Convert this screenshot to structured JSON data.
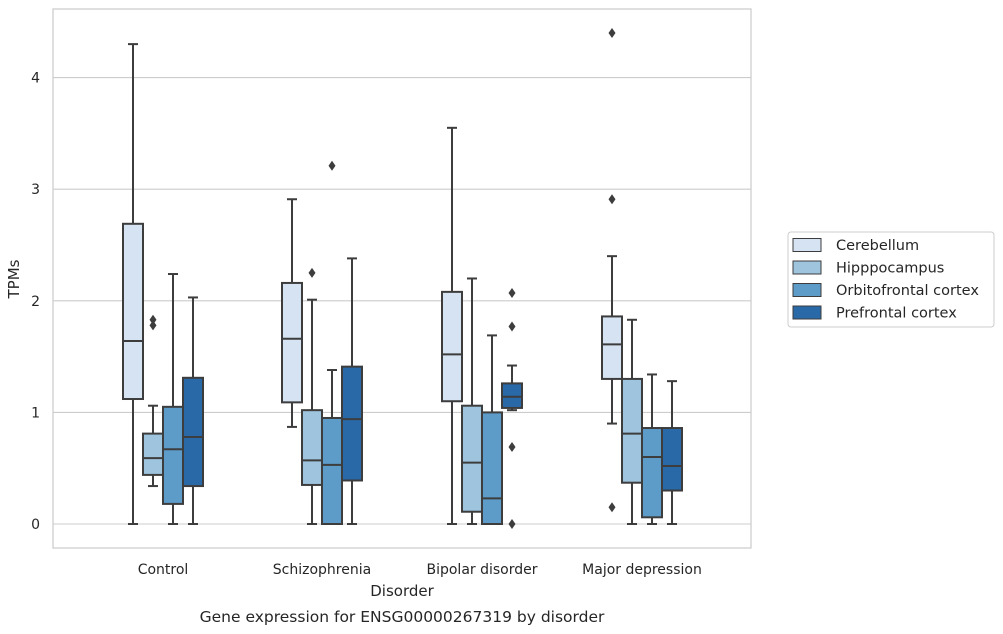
{
  "chart_data": {
    "type": "boxplot",
    "caption": "Gene expression for ENSG00000267319 by disorder",
    "xlabel": "Disorder",
    "ylabel": "TPMs",
    "ylim": [
      -0.2,
      4.6
    ],
    "yticks": [
      0,
      1,
      2,
      3,
      4
    ],
    "grid": "horizontal",
    "legend_position": "right",
    "categories": [
      "Control",
      "Schizophrenia",
      "Bipolar disorder",
      "Major depression"
    ],
    "series": [
      {
        "name": "Cerebellum",
        "color": "#d5e3f2",
        "boxes": [
          {
            "whislo": 0.0,
            "q1": 1.12,
            "med": 1.64,
            "q3": 2.69,
            "whishi": 4.3,
            "fliers": []
          },
          {
            "whislo": 0.87,
            "q1": 1.09,
            "med": 1.66,
            "q3": 2.16,
            "whishi": 2.91,
            "fliers": []
          },
          {
            "whislo": 0.0,
            "q1": 1.1,
            "med": 1.52,
            "q3": 2.08,
            "whishi": 3.55,
            "fliers": []
          },
          {
            "whislo": 0.9,
            "q1": 1.3,
            "med": 1.61,
            "q3": 1.86,
            "whishi": 2.4,
            "fliers": [
              0.15,
              2.91,
              4.4
            ]
          }
        ]
      },
      {
        "name": "Hipppocampus",
        "color": "#9fc4de",
        "boxes": [
          {
            "whislo": 0.34,
            "q1": 0.44,
            "med": 0.59,
            "q3": 0.81,
            "whishi": 1.06,
            "fliers": [
              1.78,
              1.83
            ]
          },
          {
            "whislo": 0.0,
            "q1": 0.35,
            "med": 0.57,
            "q3": 1.02,
            "whishi": 2.01,
            "fliers": [
              2.25
            ]
          },
          {
            "whislo": 0.0,
            "q1": 0.11,
            "med": 0.55,
            "q3": 1.06,
            "whishi": 2.2,
            "fliers": []
          },
          {
            "whislo": 0.0,
            "q1": 0.37,
            "med": 0.81,
            "q3": 1.3,
            "whishi": 1.83,
            "fliers": []
          }
        ]
      },
      {
        "name": "Orbitofrontal cortex",
        "color": "#5d9bc9",
        "boxes": [
          {
            "whislo": 0.0,
            "q1": 0.18,
            "med": 0.67,
            "q3": 1.05,
            "whishi": 2.24,
            "fliers": []
          },
          {
            "whislo": 0.0,
            "q1": 0.0,
            "med": 0.53,
            "q3": 0.95,
            "whishi": 1.38,
            "fliers": [
              3.21
            ]
          },
          {
            "whislo": 0.0,
            "q1": 0.0,
            "med": 0.23,
            "q3": 1.0,
            "whishi": 1.69,
            "fliers": []
          },
          {
            "whislo": 0.0,
            "q1": 0.06,
            "med": 0.6,
            "q3": 0.86,
            "whishi": 1.34,
            "fliers": []
          }
        ]
      },
      {
        "name": "Prefrontal cortex",
        "color": "#2a69a8",
        "boxes": [
          {
            "whislo": 0.0,
            "q1": 0.34,
            "med": 0.78,
            "q3": 1.31,
            "whishi": 2.03,
            "fliers": []
          },
          {
            "whislo": 0.0,
            "q1": 0.39,
            "med": 0.94,
            "q3": 1.41,
            "whishi": 2.38,
            "fliers": []
          },
          {
            "whislo": 1.02,
            "q1": 1.04,
            "med": 1.14,
            "q3": 1.26,
            "whishi": 1.42,
            "fliers": [
              0.0,
              0.69,
              1.77,
              2.07
            ]
          },
          {
            "whislo": 0.0,
            "q1": 0.3,
            "med": 0.52,
            "q3": 0.86,
            "whishi": 1.28,
            "fliers": []
          }
        ]
      }
    ]
  }
}
